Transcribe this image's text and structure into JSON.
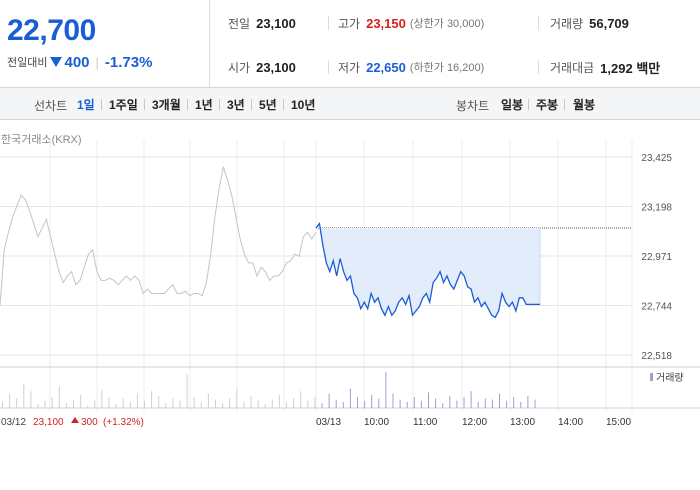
{
  "summary": {
    "price": "22,700",
    "change_label": "전일대비",
    "change_amount": "400",
    "change_rate": "-1.73%",
    "colors": {
      "up": "#d62020",
      "down": "#1a5ed6"
    },
    "stats": {
      "prev_close": {
        "label": "전일",
        "value": "23,100"
      },
      "high": {
        "label": "고가",
        "value": "23,150",
        "sub": "(상한가 30,000)"
      },
      "volume": {
        "label": "거래량",
        "value": "56,709"
      },
      "open": {
        "label": "시가",
        "value": "23,100"
      },
      "low": {
        "label": "저가",
        "value": "22,650",
        "sub": "(하한가 16,200)"
      },
      "amount": {
        "label": "거래대금",
        "value": "1,292 백만"
      }
    }
  },
  "line_tabs": {
    "title": "선차트",
    "items": [
      "1일",
      "1주일",
      "3개월",
      "1년",
      "3년",
      "5년",
      "10년"
    ],
    "active": "1일"
  },
  "candle_tabs": {
    "title": "봉차트",
    "items": [
      "일봉",
      "주봉",
      "월봉"
    ]
  },
  "chart": {
    "source": "한국거래소(KRX)",
    "volume_legend": "거래량",
    "prev_day": {
      "date": "03/12",
      "close": "23,100",
      "change": "300",
      "rate": "(+1.32%)"
    }
  },
  "chart_data": {
    "type": "line",
    "ylim": [
      22518,
      23425
    ],
    "yticks": [
      "23,425",
      "23,198",
      "22,971",
      "22,744",
      "22,518"
    ],
    "xticks": [
      "03/12",
      "03/13",
      "10:00",
      "11:00",
      "12:00",
      "13:00",
      "14:00",
      "15:00"
    ],
    "reference_line": 23100,
    "series": [
      {
        "values": [
          22744,
          23000,
          23080,
          23150,
          23200,
          23250,
          23230,
          23180,
          23120,
          23060,
          23100,
          23140,
          23060,
          22980,
          22900,
          22850,
          22880,
          22900,
          22840,
          22860,
          22920,
          22980,
          23000,
          22900,
          22860,
          22860,
          22870,
          22860,
          22840,
          22860,
          22880,
          22860,
          22880,
          22860,
          22800,
          22820,
          22800,
          22800,
          22800,
          22800,
          22820,
          22840,
          22800,
          22800,
          22810,
          22790,
          22800,
          22800,
          22790,
          22850,
          22980,
          23150,
          23280,
          23380,
          23320,
          23250,
          23150,
          23050,
          22980,
          22940,
          22940,
          22880,
          22920,
          22900,
          22860,
          22880,
          22880,
          22900,
          22940,
          22950,
          22980,
          22970,
          23060,
          23080,
          23050,
          23080
        ]
      },
      {
        "values": [
          23100,
          23120,
          23020,
          22940,
          22900,
          22950,
          22880,
          22960,
          22900,
          22860,
          22880,
          22800,
          22780,
          22730,
          22760,
          22730,
          22800,
          22760,
          22780,
          22730,
          22700,
          22740,
          22700,
          22720,
          22760,
          22780,
          22750,
          22790,
          22700,
          22720,
          22740,
          22780,
          22800,
          22760,
          22850,
          22870,
          22900,
          22850,
          22880,
          22840,
          22820,
          22860,
          22900,
          22880,
          22830,
          22820,
          22760,
          22780,
          22740,
          22760,
          22730,
          22700,
          22690,
          22720,
          22800,
          22760,
          22740,
          22760,
          22720,
          22780,
          22780,
          22750,
          22750,
          22750,
          22750,
          22750
        ]
      }
    ],
    "volume": [
      5,
      12,
      8,
      20,
      14,
      3,
      6,
      9,
      18,
      4,
      7,
      11,
      2,
      6,
      15,
      9,
      3,
      8,
      5,
      12,
      6,
      14,
      10,
      4,
      8,
      6,
      28,
      9,
      5,
      12,
      7,
      4,
      8,
      16,
      5,
      10,
      6,
      3,
      7,
      11,
      5,
      8,
      14,
      6,
      9,
      4,
      12,
      7,
      5,
      16,
      9,
      6,
      11,
      8,
      30,
      12,
      7,
      5,
      9,
      6,
      13,
      8,
      4,
      10,
      6,
      9,
      14,
      5,
      8,
      7,
      12,
      6,
      9,
      5,
      10,
      7
    ]
  }
}
